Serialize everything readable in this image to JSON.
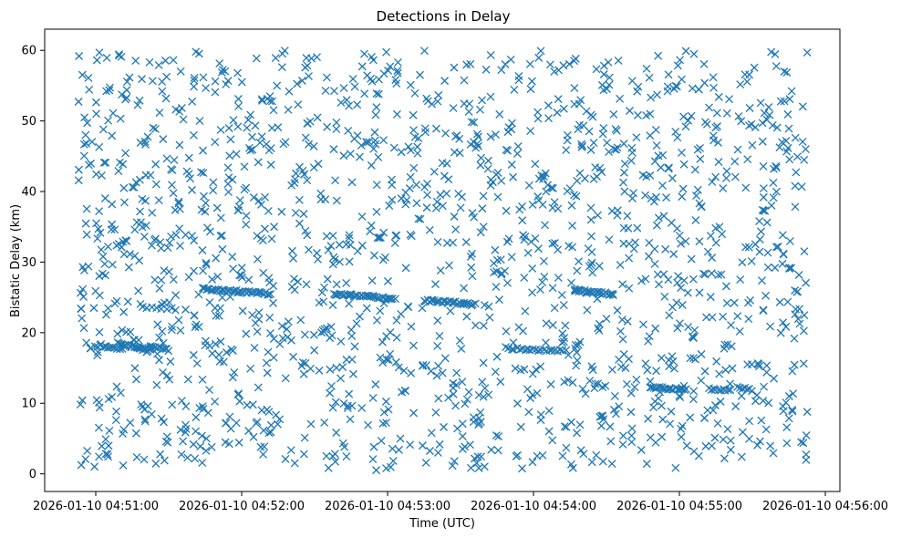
{
  "chart_data": {
    "type": "scatter",
    "title": "Detections in Delay",
    "xlabel": "Time (UTC)",
    "ylabel": "Bistatic Delay (km)",
    "marker": "x",
    "color": "#1f77b4",
    "grid": false,
    "legend": "none",
    "x_unit": "minutes after 2026-01-10 04:50:00",
    "xlim": [
      0.65,
      6.1
    ],
    "ylim": [
      -2.5,
      63
    ],
    "x_ticks": [
      {
        "value": 1,
        "label": "2026-01-10 04:51:00"
      },
      {
        "value": 2,
        "label": "2026-01-10 04:52:00"
      },
      {
        "value": 3,
        "label": "2026-01-10 04:53:00"
      },
      {
        "value": 4,
        "label": "2026-01-10 04:54:00"
      },
      {
        "value": 5,
        "label": "2026-01-10 04:55:00"
      },
      {
        "value": 6,
        "label": "2026-01-10 04:56:00"
      }
    ],
    "y_ticks": [
      {
        "value": 0,
        "label": "0"
      },
      {
        "value": 10,
        "label": "10"
      },
      {
        "value": 20,
        "label": "20"
      },
      {
        "value": 30,
        "label": "30"
      },
      {
        "value": 40,
        "label": "40"
      },
      {
        "value": 50,
        "label": "50"
      },
      {
        "value": 60,
        "label": "60"
      }
    ],
    "tracks": [
      {
        "x_start": 1.15,
        "x_end": 1.37,
        "y_start": 18.5,
        "y_end": 17.5
      },
      {
        "x_start": 1.0,
        "x_end": 1.18,
        "y_start": 18.2,
        "y_end": 17.8
      },
      {
        "x_start": 1.38,
        "x_end": 1.5,
        "y_start": 18.0,
        "y_end": 17.6
      },
      {
        "x_start": 1.32,
        "x_end": 1.55,
        "y_start": 23.5,
        "y_end": 23.3
      },
      {
        "x_start": 1.73,
        "x_end": 2.2,
        "y_start": 26.2,
        "y_end": 25.5
      },
      {
        "x_start": 2.63,
        "x_end": 3.05,
        "y_start": 25.5,
        "y_end": 24.8
      },
      {
        "x_start": 3.25,
        "x_end": 3.6,
        "y_start": 24.6,
        "y_end": 24.0
      },
      {
        "x_start": 3.83,
        "x_end": 4.22,
        "y_start": 17.8,
        "y_end": 17.4
      },
      {
        "x_start": 4.28,
        "x_end": 4.55,
        "y_start": 26.0,
        "y_end": 25.4
      },
      {
        "x_start": 4.8,
        "x_end": 5.05,
        "y_start": 12.2,
        "y_end": 12.0
      },
      {
        "x_start": 5.2,
        "x_end": 5.35,
        "y_start": 12.0,
        "y_end": 11.9
      },
      {
        "x_start": 5.4,
        "x_end": 5.5,
        "y_start": 12.3,
        "y_end": 11.8
      }
    ],
    "tracks_points_each": [
      26,
      12,
      10,
      8,
      40,
      34,
      30,
      22,
      24,
      20,
      10,
      7
    ],
    "clutter": {
      "x_range": [
        0.88,
        5.88
      ],
      "y_range": [
        0.5,
        60.0
      ],
      "count": 1650,
      "seed": 17
    },
    "annotations": []
  }
}
